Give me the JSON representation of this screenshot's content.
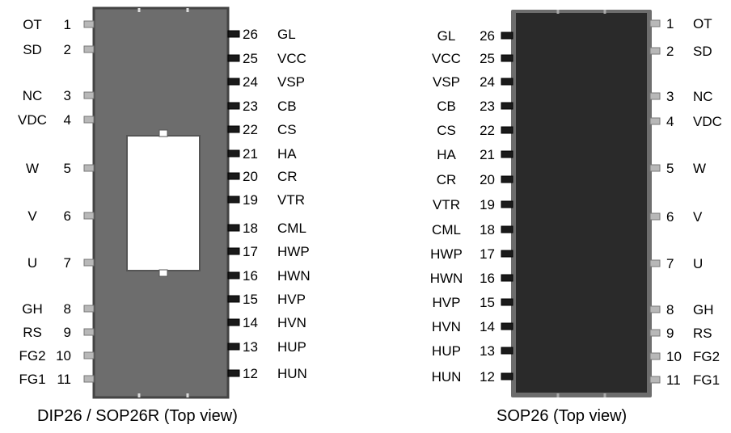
{
  "packages": [
    {
      "caption": "DIP26 / SOP26R (Top view)",
      "body_color": "#6d6d6d",
      "left_pins": [
        {
          "num": "1",
          "name": "OT"
        },
        {
          "num": "2",
          "name": "SD"
        },
        {
          "num": "3",
          "name": "NC"
        },
        {
          "num": "4",
          "name": "VDC"
        },
        {
          "num": "5",
          "name": "W"
        },
        {
          "num": "6",
          "name": "V"
        },
        {
          "num": "7",
          "name": "U"
        },
        {
          "num": "8",
          "name": "GH"
        },
        {
          "num": "9",
          "name": "RS"
        },
        {
          "num": "10",
          "name": "FG2"
        },
        {
          "num": "11",
          "name": "FG1"
        }
      ],
      "right_pins": [
        {
          "num": "26",
          "name": "GL"
        },
        {
          "num": "25",
          "name": "VCC"
        },
        {
          "num": "24",
          "name": "VSP"
        },
        {
          "num": "23",
          "name": "CB"
        },
        {
          "num": "22",
          "name": "CS"
        },
        {
          "num": "21",
          "name": "HA"
        },
        {
          "num": "20",
          "name": "CR"
        },
        {
          "num": "19",
          "name": "VTR"
        },
        {
          "num": "18",
          "name": "CML"
        },
        {
          "num": "17",
          "name": "HWP"
        },
        {
          "num": "16",
          "name": "HWN"
        },
        {
          "num": "15",
          "name": "HVP"
        },
        {
          "num": "14",
          "name": "HVN"
        },
        {
          "num": "13",
          "name": "HUP"
        },
        {
          "num": "12",
          "name": "HUN"
        }
      ]
    },
    {
      "caption": "SOP26 (Top view)",
      "body_color": "#2a2a2a",
      "left_pins": [
        {
          "num": "26",
          "name": "GL"
        },
        {
          "num": "25",
          "name": "VCC"
        },
        {
          "num": "24",
          "name": "VSP"
        },
        {
          "num": "23",
          "name": "CB"
        },
        {
          "num": "22",
          "name": "CS"
        },
        {
          "num": "21",
          "name": "HA"
        },
        {
          "num": "20",
          "name": "CR"
        },
        {
          "num": "19",
          "name": "VTR"
        },
        {
          "num": "18",
          "name": "CML"
        },
        {
          "num": "17",
          "name": "HWP"
        },
        {
          "num": "16",
          "name": "HWN"
        },
        {
          "num": "15",
          "name": "HVP"
        },
        {
          "num": "14",
          "name": "HVN"
        },
        {
          "num": "13",
          "name": "HUP"
        },
        {
          "num": "12",
          "name": "HUN"
        }
      ],
      "right_pins": [
        {
          "num": "1",
          "name": "OT"
        },
        {
          "num": "2",
          "name": "SD"
        },
        {
          "num": "3",
          "name": "NC"
        },
        {
          "num": "4",
          "name": "VDC"
        },
        {
          "num": "5",
          "name": "W"
        },
        {
          "num": "6",
          "name": "V"
        },
        {
          "num": "7",
          "name": "U"
        },
        {
          "num": "8",
          "name": "GH"
        },
        {
          "num": "9",
          "name": "RS"
        },
        {
          "num": "10",
          "name": "FG2"
        },
        {
          "num": "11",
          "name": "FG1"
        }
      ]
    }
  ]
}
